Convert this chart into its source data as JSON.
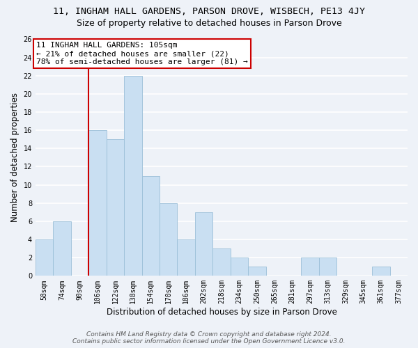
{
  "title": "11, INGHAM HALL GARDENS, PARSON DROVE, WISBECH, PE13 4JY",
  "subtitle": "Size of property relative to detached houses in Parson Drove",
  "xlabel": "Distribution of detached houses by size in Parson Drove",
  "ylabel": "Number of detached properties",
  "bin_labels": [
    "58sqm",
    "74sqm",
    "90sqm",
    "106sqm",
    "122sqm",
    "138sqm",
    "154sqm",
    "170sqm",
    "186sqm",
    "202sqm",
    "218sqm",
    "234sqm",
    "250sqm",
    "265sqm",
    "281sqm",
    "297sqm",
    "313sqm",
    "329sqm",
    "345sqm",
    "361sqm",
    "377sqm"
  ],
  "bar_values": [
    4,
    6,
    0,
    16,
    15,
    22,
    11,
    8,
    4,
    7,
    3,
    2,
    1,
    0,
    0,
    2,
    2,
    0,
    0,
    1,
    0
  ],
  "bar_color": "#c9dff2",
  "bar_edge_color": "#9bbfd8",
  "vline_x_index": 3,
  "vline_color": "#cc0000",
  "ylim": [
    0,
    26
  ],
  "yticks": [
    0,
    2,
    4,
    6,
    8,
    10,
    12,
    14,
    16,
    18,
    20,
    22,
    24,
    26
  ],
  "annotation_line1": "11 INGHAM HALL GARDENS: 105sqm",
  "annotation_line2": "← 21% of detached houses are smaller (22)",
  "annotation_line3": "78% of semi-detached houses are larger (81) →",
  "footer_line1": "Contains HM Land Registry data © Crown copyright and database right 2024.",
  "footer_line2": "Contains public sector information licensed under the Open Government Licence v3.0.",
  "background_color": "#eef2f8",
  "grid_color": "#ffffff",
  "title_fontsize": 9.5,
  "subtitle_fontsize": 9,
  "axis_label_fontsize": 8.5,
  "tick_fontsize": 7,
  "annotation_fontsize": 8,
  "footer_fontsize": 6.5
}
